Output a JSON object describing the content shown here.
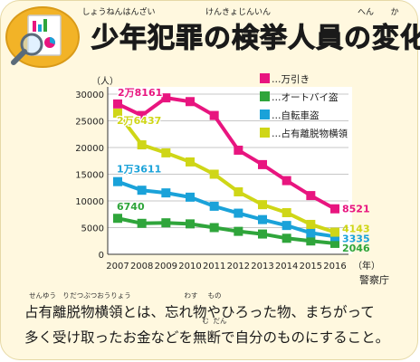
{
  "title": "少年犯罪の検挙人員の変化",
  "title_ruby": [
    "しょうねんはんざい",
    "けんきょじんいん",
    "へん",
    "か"
  ],
  "source": "警察庁",
  "caption": {
    "line1": "占有離脱物横領とは、忘れ物やひろった物、まちがって",
    "line2": "多く受け取ったお金などを無断で自分のものにすること。",
    "ruby": [
      "せんゆう",
      "り",
      "だつぶつおうりょう",
      "わす",
      "もの",
      "む",
      "だん"
    ]
  },
  "chart_data": {
    "type": "line",
    "ylabel": "（人）",
    "xlabel": "（年）",
    "ylim": [
      0,
      30000
    ],
    "yticks": [
      0,
      5000,
      10000,
      15000,
      20000,
      25000,
      30000
    ],
    "x": [
      "2007",
      "2008",
      "2009",
      "2010",
      "2011",
      "2012",
      "2013",
      "2014",
      "2015",
      "2016"
    ],
    "legend_position": "top-right",
    "series": [
      {
        "name": "…万引き",
        "color": "#e8157f",
        "values": [
          28161,
          26000,
          29300,
          28600,
          26000,
          19500,
          16800,
          13800,
          11000,
          8521
        ],
        "start_label": "2万8161",
        "end_label": "8521"
      },
      {
        "name": "…オートバイ盗",
        "color": "#2fa53b",
        "values": [
          6740,
          5800,
          5900,
          5700,
          5000,
          4300,
          3800,
          3000,
          2500,
          2046
        ],
        "start_label": "6740",
        "end_label": "2046"
      },
      {
        "name": "…自転車盗",
        "color": "#1aa2d9",
        "values": [
          13611,
          12000,
          11500,
          10700,
          9000,
          7700,
          6500,
          5400,
          4000,
          3335
        ],
        "start_label": "1万3611",
        "end_label": "3335"
      },
      {
        "name": "…占有離脱物横領",
        "color": "#cfd617",
        "values": [
          26437,
          20500,
          19000,
          17300,
          15000,
          11700,
          9300,
          7800,
          5600,
          4143
        ],
        "start_label": "2万6437",
        "end_label": "4143"
      }
    ]
  },
  "colors": {
    "background": "#fff8df",
    "plot_background": "#ffffff"
  },
  "icons": {
    "badge": "magnifier-chart-icon"
  }
}
